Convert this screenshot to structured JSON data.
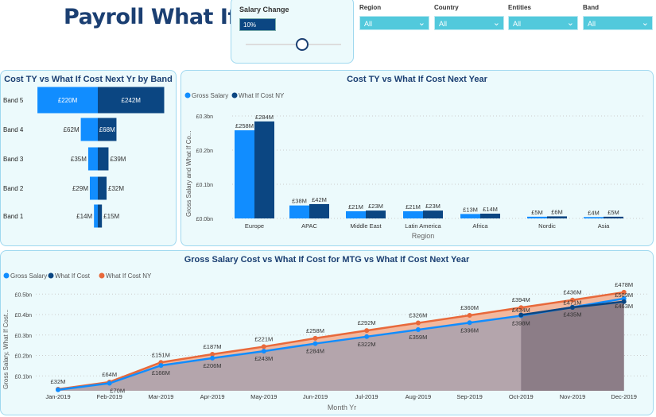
{
  "header": {
    "title": "Payroll What If"
  },
  "slider": {
    "label": "Salary Change",
    "value": "10%",
    "fraction": 0.5
  },
  "filters": [
    {
      "label": "Region",
      "value": "All"
    },
    {
      "label": "Country",
      "value": "All"
    },
    {
      "label": "Entities",
      "value": "All"
    },
    {
      "label": "Band",
      "value": "All"
    }
  ],
  "colors": {
    "gross": "#118dff",
    "whatif": "#0b4682",
    "ny": "#e8693b",
    "slicer": "#52c9dc",
    "title": "#1b3f72"
  },
  "chart_data": [
    {
      "type": "bar",
      "orientation": "horizontal-funnel",
      "title": "Cost TY vs What If Cost Next Yr by Band",
      "categories": [
        "Band 5",
        "Band 4",
        "Band 3",
        "Band 2",
        "Band 1"
      ],
      "series": [
        {
          "values": [
            220,
            62,
            35,
            29,
            14
          ],
          "labels": [
            "£220M",
            "£62M",
            "£35M",
            "£29M",
            "£14M"
          ]
        },
        {
          "values": [
            242,
            68,
            39,
            32,
            15
          ],
          "labels": [
            "£242M",
            "£68M",
            "£39M",
            "£32M",
            "£15M"
          ]
        }
      ]
    },
    {
      "type": "bar",
      "title": "Cost TY vs What If Cost Next Year",
      "xlabel": "Region",
      "ylabel": "Gross Salary and What If Co...",
      "categories": [
        "Europe",
        "APAC",
        "Middle East",
        "Latin America",
        "Africa",
        "Nordic",
        "Asia"
      ],
      "yticks": [
        "£0.0bn",
        "£0.1bn",
        "£0.2bn",
        "£0.3bn"
      ],
      "ylim": [
        0,
        0.3
      ],
      "series": [
        {
          "name": "Gross Salary",
          "values": [
            258,
            38,
            21,
            21,
            13,
            5,
            4
          ],
          "labels": [
            "£258M",
            "£38M",
            "£21M",
            "£21M",
            "£13M",
            "£5M",
            "£4M"
          ]
        },
        {
          "name": "What If Cost NY",
          "values": [
            284,
            42,
            23,
            23,
            14,
            6,
            5
          ],
          "labels": [
            "£284M",
            "£42M",
            "£23M",
            "£23M",
            "£14M",
            "£6M",
            "£5M"
          ]
        }
      ]
    },
    {
      "type": "line",
      "title": "Gross Salary Cost vs What If Cost for MTG vs What If Cost Next Year",
      "xlabel": "Month Yr",
      "ylabel": "Gross Salary, What If Cost...",
      "categories": [
        "Jan-2019",
        "Feb-2019",
        "Mar-2019",
        "Apr-2019",
        "May-2019",
        "Jun-2019",
        "Jul-2019",
        "Aug-2019",
        "Sep-2019",
        "Oct-2019",
        "Nov-2019",
        "Dec-2019"
      ],
      "yticks": [
        "£0.1bn",
        "£0.2bn",
        "£0.3bn",
        "£0.4bn",
        "£0.5bn"
      ],
      "ylim": [
        0,
        0.5
      ],
      "series": [
        {
          "name": "Gross Salary",
          "values": [
            32,
            64,
            151,
            187,
            221,
            258,
            292,
            326,
            360,
            394,
            436,
            478
          ],
          "labels": [
            "£32M",
            "£64M",
            "£151M",
            "£187M",
            "£221M",
            "£258M",
            "£292M",
            "£326M",
            "£360M",
            "£394M",
            "£436M",
            "£478M"
          ]
        },
        {
          "name": "What If Cost",
          "values": [
            null,
            null,
            null,
            null,
            null,
            null,
            null,
            null,
            null,
            398,
            435,
            463
          ],
          "labels": [
            "",
            "",
            "",
            "",
            "",
            "",
            "",
            "",
            "",
            "£398M",
            "£435M",
            "£463M"
          ]
        },
        {
          "name": "What If Cost NY",
          "values": [
            35,
            70,
            166,
            206,
            243,
            284,
            322,
            359,
            396,
            434,
            471,
            509
          ],
          "labels": [
            "",
            "£70M",
            "£166M",
            "£206M",
            "£243M",
            "£284M",
            "£322M",
            "£359M",
            "£396M",
            "£434M",
            "£471M",
            "£509M"
          ]
        }
      ]
    }
  ]
}
